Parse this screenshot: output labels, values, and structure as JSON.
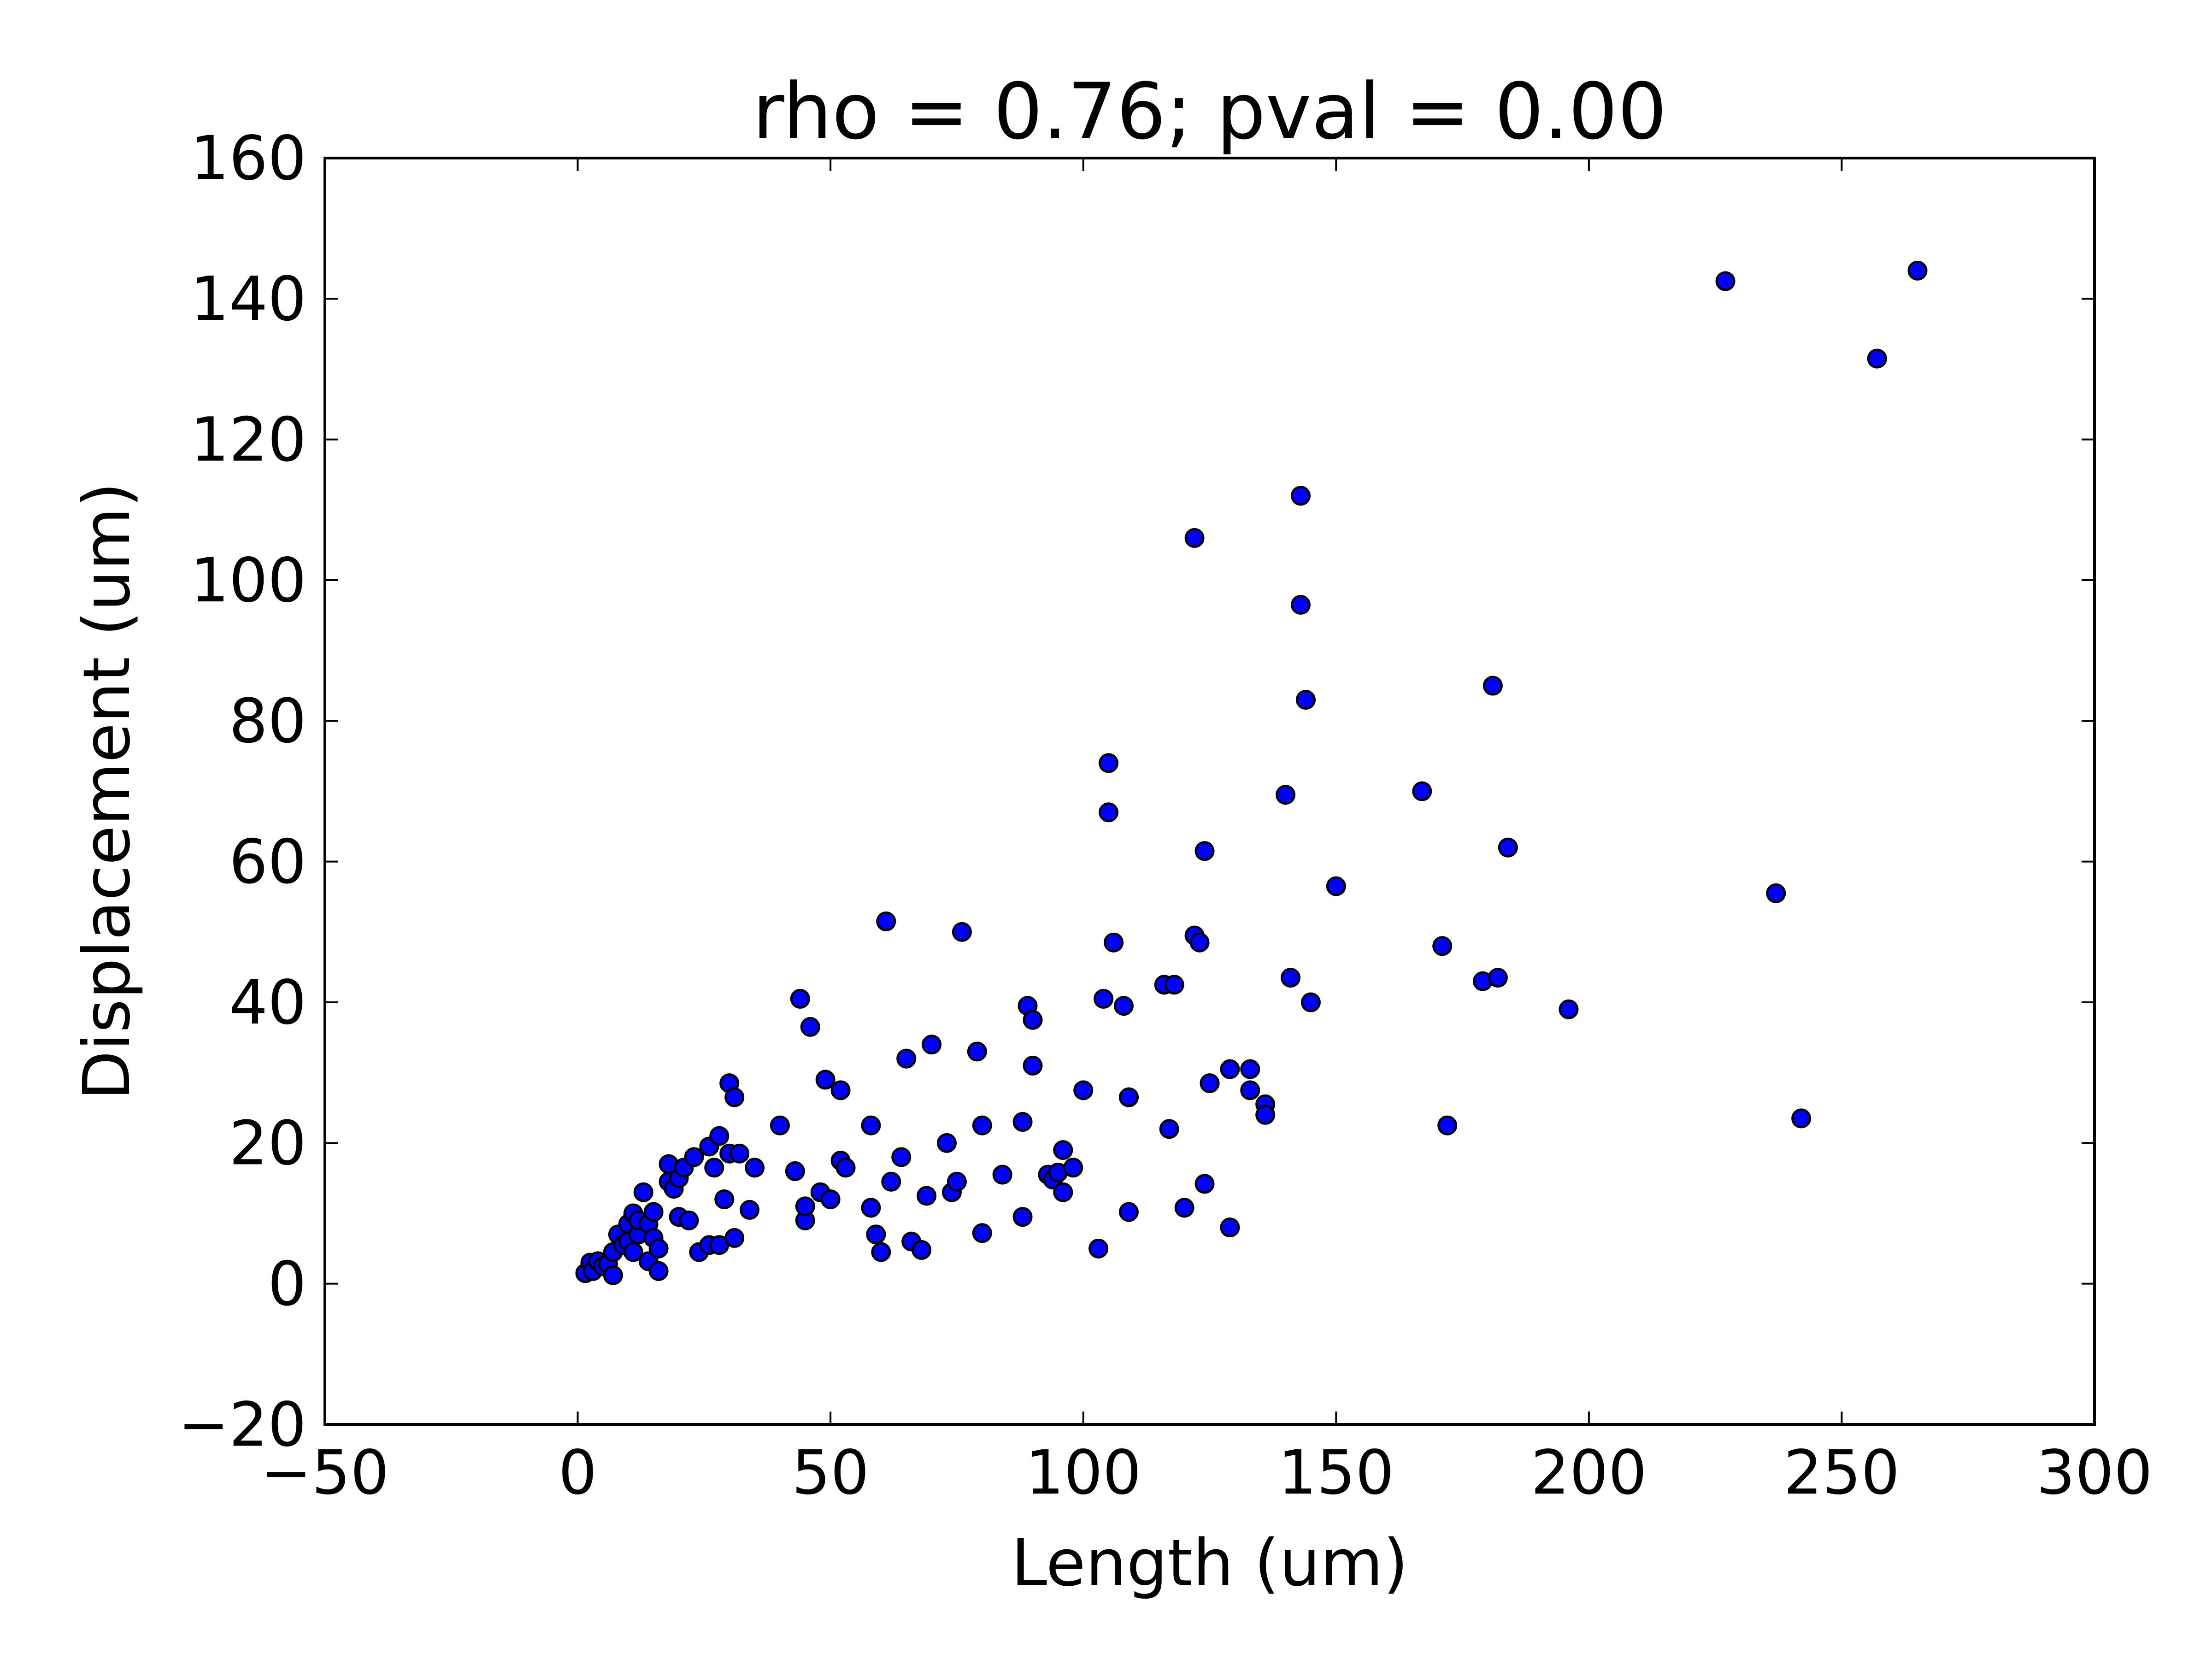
{
  "chart_data": {
    "type": "scatter",
    "title": "rho =  0.76; pval =  0.00",
    "xlabel": "Length (um)",
    "ylabel": "Displacement (um)",
    "xlim": [
      -50,
      300
    ],
    "ylim": [
      -20,
      160
    ],
    "xticks": [
      -50,
      0,
      50,
      100,
      150,
      200,
      250,
      300
    ],
    "yticks": [
      -20,
      0,
      20,
      40,
      60,
      80,
      100,
      120,
      140,
      160
    ],
    "xtick_labels": [
      "−50",
      "0",
      "50",
      "100",
      "150",
      "200",
      "250",
      "300"
    ],
    "ytick_labels": [
      "−20",
      "0",
      "20",
      "40",
      "60",
      "80",
      "100",
      "120",
      "140",
      "160"
    ],
    "grid": false,
    "legend": "none",
    "marker_color": "#0000ff",
    "marker_edge_color": "#000000",
    "points": [
      [
        1.5,
        1.5
      ],
      [
        2.5,
        3
      ],
      [
        3,
        1.8
      ],
      [
        4,
        3.2
      ],
      [
        5,
        2.5
      ],
      [
        6,
        2.8
      ],
      [
        7,
        4.5
      ],
      [
        7,
        1.2
      ],
      [
        8,
        7
      ],
      [
        9,
        5.5
      ],
      [
        10,
        8.5
      ],
      [
        10,
        6
      ],
      [
        11,
        4.5
      ],
      [
        11,
        10
      ],
      [
        12,
        7
      ],
      [
        12,
        9
      ],
      [
        13,
        13
      ],
      [
        14,
        8.5
      ],
      [
        14,
        3.2
      ],
      [
        15,
        10.2
      ],
      [
        15,
        6.5
      ],
      [
        16,
        5
      ],
      [
        16,
        1.8
      ],
      [
        18,
        17
      ],
      [
        18,
        14.5
      ],
      [
        19,
        13.5
      ],
      [
        20,
        15
      ],
      [
        20,
        9.5
      ],
      [
        21,
        16.5
      ],
      [
        22,
        9
      ],
      [
        23,
        18
      ],
      [
        24,
        4.5
      ],
      [
        26,
        19.5
      ],
      [
        26,
        5.5
      ],
      [
        27,
        16.5
      ],
      [
        28,
        5.5
      ],
      [
        28,
        21
      ],
      [
        29,
        12
      ],
      [
        30,
        28.5
      ],
      [
        30,
        18.5
      ],
      [
        31,
        26.5
      ],
      [
        31,
        6.5
      ],
      [
        32,
        18.5
      ],
      [
        34,
        10.5
      ],
      [
        35,
        16.5
      ],
      [
        40,
        22.5
      ],
      [
        43,
        16
      ],
      [
        44,
        40.5
      ],
      [
        45,
        9
      ],
      [
        45,
        11
      ],
      [
        46,
        36.5
      ],
      [
        48,
        13
      ],
      [
        49,
        29
      ],
      [
        50,
        12
      ],
      [
        52,
        27.5
      ],
      [
        52,
        17.5
      ],
      [
        53,
        16.5
      ],
      [
        58,
        22.5
      ],
      [
        58,
        10.8
      ],
      [
        59,
        7
      ],
      [
        60,
        4.5
      ],
      [
        61,
        51.5
      ],
      [
        62,
        14.5
      ],
      [
        64,
        18
      ],
      [
        65,
        32
      ],
      [
        66,
        6
      ],
      [
        68,
        4.8
      ],
      [
        69,
        12.5
      ],
      [
        70,
        34
      ],
      [
        73,
        20
      ],
      [
        74,
        13
      ],
      [
        75,
        14.5
      ],
      [
        76,
        50
      ],
      [
        79,
        33
      ],
      [
        80,
        22.5
      ],
      [
        80,
        7.2
      ],
      [
        84,
        15.5
      ],
      [
        88,
        23
      ],
      [
        88,
        9.5
      ],
      [
        89,
        39.5
      ],
      [
        90,
        37.5
      ],
      [
        90,
        31
      ],
      [
        93,
        15.5
      ],
      [
        94,
        14.8
      ],
      [
        95,
        15.8
      ],
      [
        96,
        13
      ],
      [
        96,
        19
      ],
      [
        98,
        16.5
      ],
      [
        100,
        27.5
      ],
      [
        103,
        5
      ],
      [
        104,
        40.5
      ],
      [
        105,
        74
      ],
      [
        105,
        67
      ],
      [
        106,
        48.5
      ],
      [
        108,
        39.5
      ],
      [
        109,
        26.5
      ],
      [
        109,
        10.2
      ],
      [
        109,
        26.5
      ],
      [
        116,
        42.5
      ],
      [
        117,
        22
      ],
      [
        118,
        42.5
      ],
      [
        120,
        10.8
      ],
      [
        122,
        49.5
      ],
      [
        122,
        106
      ],
      [
        123,
        48.5
      ],
      [
        124,
        61.5
      ],
      [
        124,
        14.2
      ],
      [
        125,
        28.5
      ],
      [
        129,
        30.5
      ],
      [
        129,
        8
      ],
      [
        133,
        30.5
      ],
      [
        133,
        27.5
      ],
      [
        136,
        25.5
      ],
      [
        136,
        24
      ],
      [
        140,
        69.5
      ],
      [
        141,
        43.5
      ],
      [
        143,
        112
      ],
      [
        143,
        96.5
      ],
      [
        144,
        83
      ],
      [
        145,
        40
      ],
      [
        150,
        56.5
      ],
      [
        167,
        70
      ],
      [
        171,
        48
      ],
      [
        172,
        22.5
      ],
      [
        179,
        43
      ],
      [
        181,
        85
      ],
      [
        182,
        43.5
      ],
      [
        184,
        62
      ],
      [
        196,
        39
      ],
      [
        227,
        142.5
      ],
      [
        237,
        55.5
      ],
      [
        242,
        23.5
      ],
      [
        257,
        131.5
      ],
      [
        265,
        144
      ]
    ]
  }
}
